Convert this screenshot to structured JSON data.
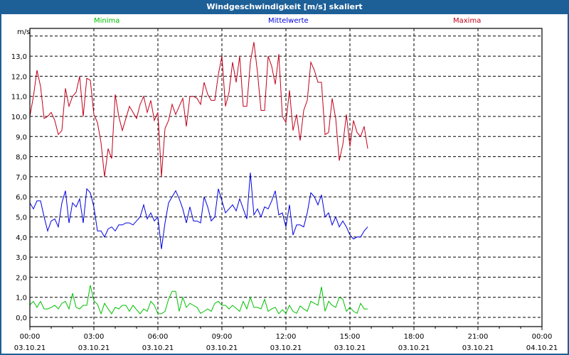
{
  "window": {
    "title": "Windgeschwindigkeit [m/s] skaliert"
  },
  "colors": {
    "titlebar": "#1d5f97",
    "minima": "#00c000",
    "mean": "#0000e0",
    "maxima": "#c0001a"
  },
  "chart_data": {
    "type": "line",
    "title": "Windgeschwindigkeit [m/s] skaliert",
    "ylabel": "m/s",
    "xlabel": "",
    "ylim": [
      0,
      14
    ],
    "xlim_hours": [
      0,
      24
    ],
    "grid": true,
    "legend_placement": "top",
    "yticks": [
      "0,0",
      "1,0",
      "2,0",
      "3,0",
      "4,0",
      "5,0",
      "6,0",
      "7,0",
      "8,0",
      "9,0",
      "10,0",
      "11,0",
      "12,0",
      "13,0"
    ],
    "xticks": [
      {
        "time": "00:00",
        "date": "03.10.21"
      },
      {
        "time": "03:00",
        "date": "03.10.21"
      },
      {
        "time": "06:00",
        "date": "03.10.21"
      },
      {
        "time": "09:00",
        "date": "03.10.21"
      },
      {
        "time": "12:00",
        "date": "03.10.21"
      },
      {
        "time": "15:00",
        "date": "03.10.21"
      },
      {
        "time": "18:00",
        "date": "03.10.21"
      },
      {
        "time": "21:00",
        "date": "03.10.21"
      },
      {
        "time": "00:00",
        "date": "04.10.21"
      }
    ],
    "x_step_minutes": 10,
    "series": [
      {
        "name": "Minima",
        "key": "minima",
        "values": [
          0.62,
          0.8,
          0.5,
          0.8,
          0.42,
          0.42,
          0.5,
          0.6,
          0.42,
          0.7,
          0.8,
          0.42,
          1.2,
          0.5,
          0.42,
          0.6,
          0.6,
          1.6,
          0.83,
          0.65,
          0.18,
          0.7,
          0.42,
          0.18,
          0.5,
          0.42,
          0.6,
          0.6,
          0.3,
          0.6,
          0.38,
          0.18,
          0.42,
          0.3,
          0.8,
          0.6,
          0.18,
          0.18,
          0.3,
          0.9,
          1.3,
          1.3,
          0.3,
          1.0,
          0.5,
          0.7,
          0.6,
          0.5,
          0.2,
          0.3,
          0.42,
          0.3,
          0.7,
          0.8,
          0.6,
          0.6,
          0.42,
          0.6,
          0.45,
          0.3,
          0.8,
          0.42,
          1.0,
          0.5,
          0.5,
          0.42,
          0.9,
          0.3,
          0.42,
          0.5,
          0.18,
          0.38,
          0.2,
          0.6,
          0.3,
          0.2,
          0.57,
          0.42,
          0.3,
          0.8,
          0.7,
          0.6,
          1.52,
          0.3,
          0.8,
          0.6,
          0.5,
          1.0,
          0.9,
          0.3,
          0.5,
          0.3,
          0.2,
          0.7,
          0.42,
          0.42
        ]
      },
      {
        "name": "Mittelwerte",
        "key": "mean",
        "values": [
          5.7,
          5.4,
          5.8,
          5.8,
          5.0,
          4.3,
          4.8,
          4.9,
          4.5,
          5.7,
          6.3,
          4.7,
          5.7,
          5.5,
          5.9,
          4.7,
          6.4,
          6.2,
          5.5,
          4.3,
          4.3,
          4.0,
          4.4,
          4.5,
          4.3,
          4.6,
          4.6,
          4.7,
          4.7,
          4.6,
          4.8,
          5.0,
          5.6,
          4.9,
          5.2,
          4.8,
          5.0,
          3.4,
          4.7,
          5.7,
          6.0,
          6.3,
          5.9,
          5.4,
          4.7,
          5.5,
          4.8,
          4.8,
          4.7,
          6.0,
          5.5,
          4.8,
          5.0,
          6.4,
          5.8,
          5.2,
          5.4,
          5.6,
          5.3,
          5.9,
          5.4,
          4.9,
          7.2,
          5.1,
          5.4,
          5.0,
          5.5,
          5.4,
          5.8,
          6.3,
          5.1,
          5.2,
          4.5,
          5.6,
          4.1,
          4.6,
          4.6,
          4.5,
          5.2,
          6.2,
          6.0,
          5.6,
          6.1,
          5.0,
          5.2,
          4.6,
          5.0,
          4.5,
          4.8,
          4.5,
          4.1,
          3.9,
          4.0,
          4.0,
          4.3,
          4.5
        ]
      },
      {
        "name": "Maxima",
        "key": "maxima",
        "values": [
          10.0,
          11.0,
          12.3,
          11.5,
          9.9,
          10.0,
          10.2,
          9.8,
          9.1,
          9.3,
          11.4,
          10.5,
          11.0,
          11.2,
          12.0,
          10.0,
          11.9,
          11.8,
          10.1,
          9.7,
          8.7,
          7.0,
          8.4,
          7.9,
          11.1,
          10.0,
          9.3,
          9.9,
          10.5,
          10.2,
          9.9,
          10.6,
          11.0,
          10.2,
          10.8,
          9.8,
          10.2,
          7.0,
          9.4,
          9.8,
          10.6,
          10.1,
          10.5,
          10.9,
          9.5,
          11.0,
          11.0,
          10.9,
          10.6,
          11.7,
          11.1,
          10.8,
          10.8,
          12.1,
          13.0,
          10.5,
          11.2,
          12.7,
          11.7,
          13.0,
          10.5,
          10.5,
          12.7,
          13.7,
          12.2,
          10.3,
          10.3,
          13.0,
          12.5,
          11.6,
          13.1,
          10.0,
          9.7,
          11.3,
          9.3,
          10.1,
          8.8,
          10.3,
          10.8,
          12.7,
          12.3,
          11.7,
          11.7,
          9.1,
          9.2,
          10.9,
          9.9,
          7.8,
          8.6,
          10.1,
          8.5,
          9.8,
          9.2,
          9.0,
          9.5,
          8.4
        ]
      }
    ]
  }
}
